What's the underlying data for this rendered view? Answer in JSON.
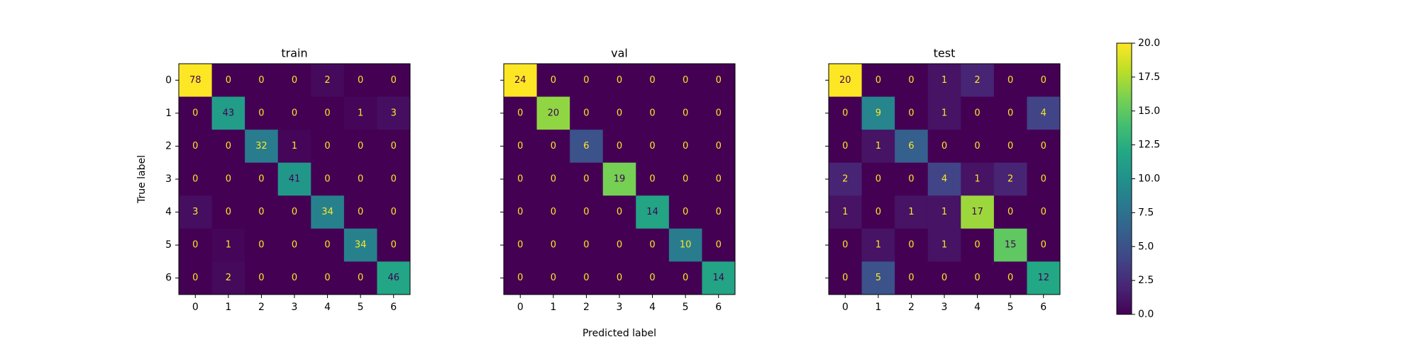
{
  "chart_data": [
    {
      "type": "heatmap",
      "title": "train",
      "ylabel": "True label",
      "categories": [
        0,
        1,
        2,
        3,
        4,
        5,
        6
      ],
      "values": [
        [
          78,
          0,
          0,
          0,
          2,
          0,
          0
        ],
        [
          0,
          43,
          0,
          0,
          0,
          1,
          3
        ],
        [
          0,
          0,
          32,
          1,
          0,
          0,
          0
        ],
        [
          0,
          0,
          0,
          41,
          0,
          0,
          0
        ],
        [
          3,
          0,
          0,
          0,
          34,
          0,
          0
        ],
        [
          0,
          1,
          0,
          0,
          0,
          34,
          0
        ],
        [
          0,
          2,
          0,
          0,
          0,
          0,
          46
        ]
      ]
    },
    {
      "type": "heatmap",
      "title": "val",
      "xlabel": "Predicted label",
      "categories": [
        0,
        1,
        2,
        3,
        4,
        5,
        6
      ],
      "values": [
        [
          24,
          0,
          0,
          0,
          0,
          0,
          0
        ],
        [
          0,
          20,
          0,
          0,
          0,
          0,
          0
        ],
        [
          0,
          0,
          6,
          0,
          0,
          0,
          0
        ],
        [
          0,
          0,
          0,
          19,
          0,
          0,
          0
        ],
        [
          0,
          0,
          0,
          0,
          14,
          0,
          0
        ],
        [
          0,
          0,
          0,
          0,
          0,
          10,
          0
        ],
        [
          0,
          0,
          0,
          0,
          0,
          0,
          14
        ]
      ]
    },
    {
      "type": "heatmap",
      "title": "test",
      "categories": [
        0,
        1,
        2,
        3,
        4,
        5,
        6
      ],
      "values": [
        [
          20,
          0,
          0,
          1,
          2,
          0,
          0
        ],
        [
          0,
          9,
          0,
          1,
          0,
          0,
          4
        ],
        [
          0,
          1,
          6,
          0,
          0,
          0,
          0
        ],
        [
          2,
          0,
          0,
          4,
          1,
          2,
          0
        ],
        [
          1,
          0,
          1,
          1,
          17,
          0,
          0
        ],
        [
          0,
          1,
          0,
          1,
          0,
          15,
          0
        ],
        [
          0,
          5,
          0,
          0,
          0,
          0,
          12
        ]
      ],
      "colorbar": {
        "lim": [
          0,
          20
        ],
        "ticks": [
          {
            "value": 0,
            "label": "0.0"
          },
          2.5,
          {
            "value": 5,
            "label": "5.0"
          },
          7.5,
          {
            "value": 10,
            "label": "10.0"
          },
          12.5,
          {
            "value": 15,
            "label": "15.0"
          },
          17.5,
          {
            "value": 20,
            "label": "20.0"
          }
        ]
      },
      "colormap": "viridis"
    }
  ]
}
